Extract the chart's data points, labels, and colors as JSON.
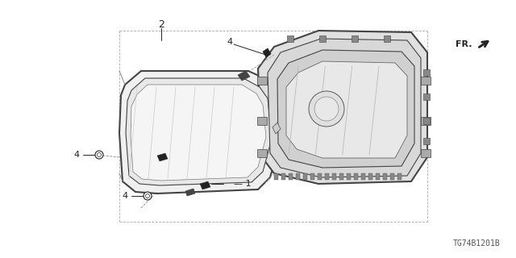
{
  "bg_color": "#ffffff",
  "line_color": "#444444",
  "dark_color": "#222222",
  "gray_color": "#888888",
  "diagram_id": "TG74B1201B",
  "label_fontsize": 8,
  "watermark_fontsize": 7
}
